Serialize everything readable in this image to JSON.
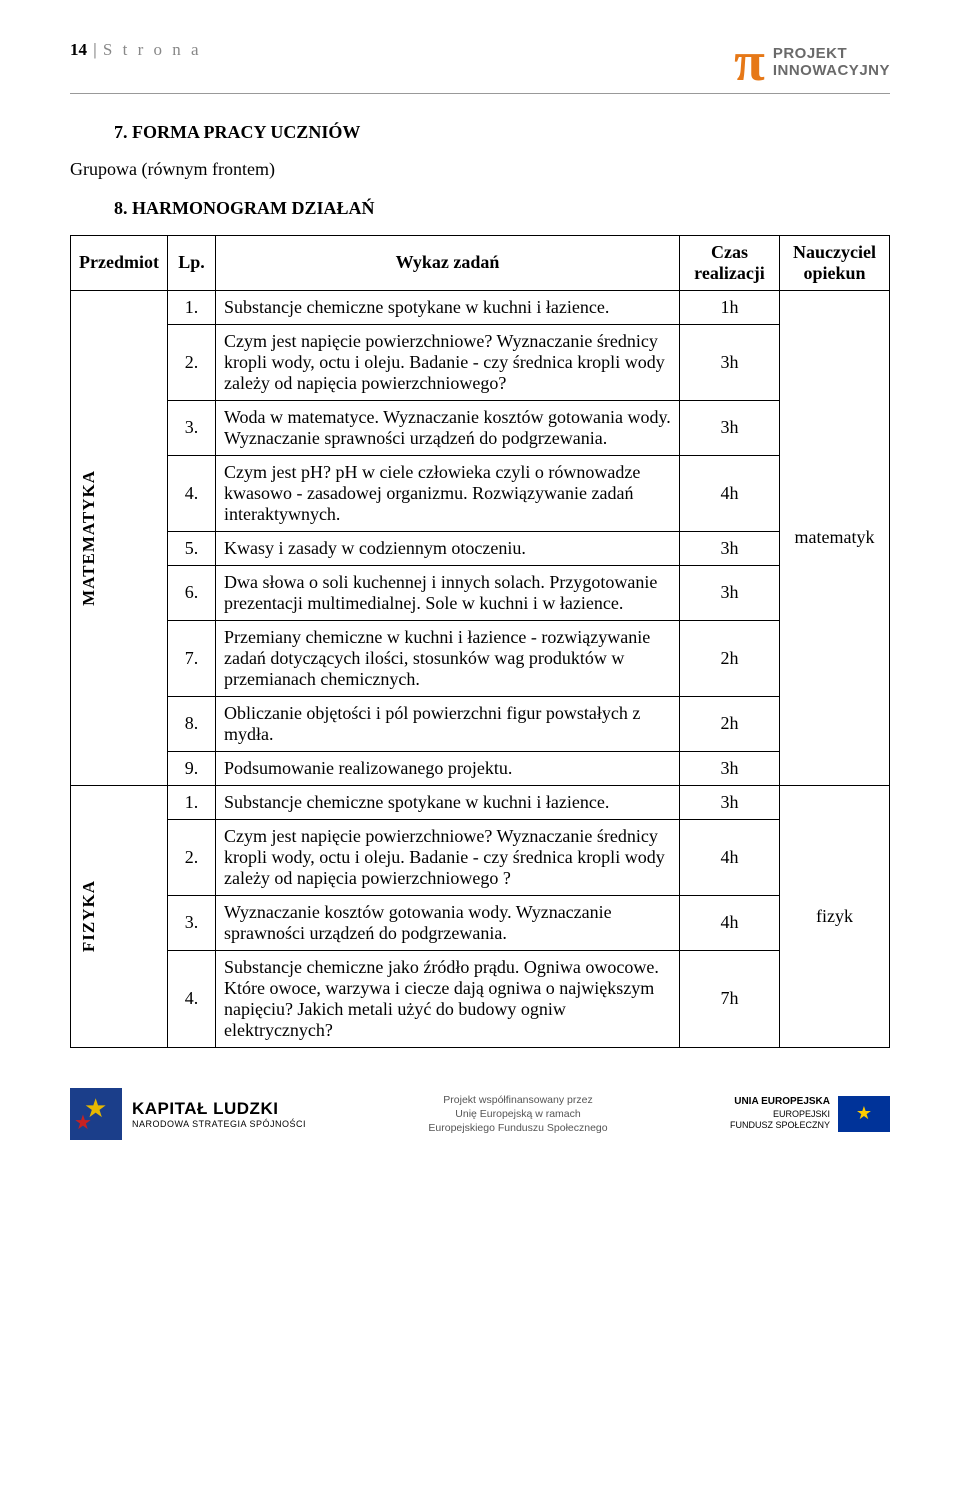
{
  "page_header": {
    "num": "14",
    "bar": "|",
    "strona": "S t r o n a"
  },
  "logo_top": {
    "pi": "π",
    "line1": "PROJEKT",
    "line2": "INNOWACYJNY"
  },
  "section7": {
    "num_title": "7.  FORMA  PRACY  UCZNIÓW",
    "body": "Grupowa (równym frontem)"
  },
  "section8": {
    "num_title": "8.  HARMONOGRAM  DZIAŁAŃ"
  },
  "table": {
    "headers": {
      "przedmiot": "Przedmiot",
      "lp": "Lp.",
      "wykaz": "Wykaz zadań",
      "czas": "Czas realizacji",
      "nauczyciel": "Nauczyciel opiekun"
    },
    "groups": [
      {
        "subject": "MATEMATYKA",
        "teacher": "matematyk",
        "rows": [
          {
            "lp": "1.",
            "task": "Substancje chemiczne spotykane w kuchni i łazience.",
            "time": "1h"
          },
          {
            "lp": "2.",
            "task": "Czym jest napięcie powierzchniowe? Wyznaczanie średnicy kropli wody, octu i oleju. Badanie - czy średnica kropli wody zależy od napięcia powierzchniowego?",
            "time": "3h"
          },
          {
            "lp": "3.",
            "task": "Woda w matematyce. Wyznaczanie kosztów gotowania wody. Wyznaczanie sprawności urządzeń do podgrzewania.",
            "time": "3h"
          },
          {
            "lp": "4.",
            "task": "Czym jest pH? pH w ciele człowieka czyli o równowadze kwasowo - zasadowej organizmu. Rozwiązywanie zadań interaktywnych.",
            "time": "4h"
          },
          {
            "lp": "5.",
            "task": "Kwasy i zasady w codziennym otoczeniu.",
            "time": "3h"
          },
          {
            "lp": "6.",
            "task": "Dwa słowa o soli kuchennej i innych solach. Przygotowanie prezentacji multimedialnej. Sole w kuchni i w łazience.",
            "time": "3h"
          },
          {
            "lp": "7.",
            "task": "Przemiany chemiczne w kuchni i łazience - rozwiązywanie zadań dotyczących ilości, stosunków wag produktów w przemianach chemicznych.",
            "time": "2h"
          },
          {
            "lp": "8.",
            "task": "Obliczanie objętości i pól powierzchni figur powstałych z mydła.",
            "time": "2h"
          },
          {
            "lp": "9.",
            "task": "Podsumowanie realizowanego projektu.",
            "time": "3h"
          }
        ]
      },
      {
        "subject": "FIZYKA",
        "teacher": "fizyk",
        "rows": [
          {
            "lp": "1.",
            "task": "Substancje chemiczne spotykane w kuchni i łazience.",
            "time": "3h"
          },
          {
            "lp": "2.",
            "task": "Czym jest napięcie powierzchniowe? Wyznaczanie średnicy kropli wody, octu i oleju. Badanie - czy średnica kropli wody zależy od napięcia powierzchniowego ?",
            "time": "4h"
          },
          {
            "lp": "3.",
            "task": "Wyznaczanie kosztów gotowania wody. Wyznaczanie sprawności urządzeń do podgrzewania.",
            "time": "4h"
          },
          {
            "lp": "4.",
            "task": "Substancje chemiczne jako źródło prądu. Ogniwa owocowe. Które owoce, warzywa i ciecze dają ogniwa o największym napięciu? Jakich metali użyć do budowy ogniw elektrycznych?",
            "time": "7h"
          }
        ]
      }
    ]
  },
  "footer": {
    "kl_big": "KAPITAŁ LUDZKI",
    "kl_small": "NARODOWA STRATEGIA SPÓJNOŚCI",
    "mid_l1": "Projekt współfinansowany przez",
    "mid_l2": "Unię Europejską w ramach",
    "mid_l3": "Europejskiego Funduszu Społecznego",
    "ue_l1": "UNIA EUROPEJSKA",
    "ue_l2": "EUROPEJSKI",
    "ue_l3": "FUNDUSZ SPOŁECZNY",
    "flag": "★"
  }
}
